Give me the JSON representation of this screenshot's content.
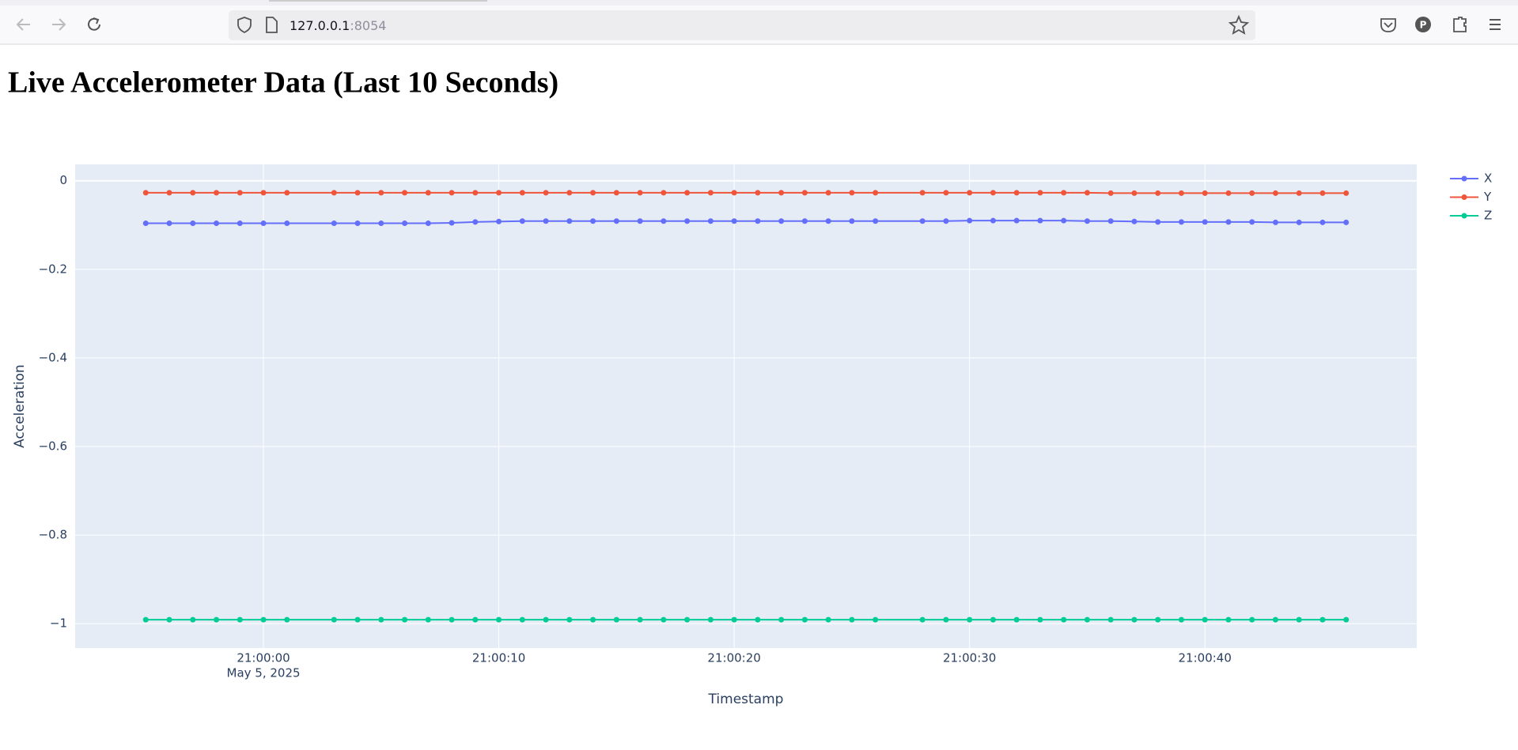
{
  "browser": {
    "url_host": "127.0.0.1",
    "url_port": ":8054",
    "profile_initial": "P"
  },
  "heading": "Live Accelerometer Data (Last 10 Seconds)",
  "chart_data": {
    "type": "line",
    "xlabel": "Timestamp",
    "ylabel": "Acceleration",
    "x": [
      "2025-05-05T20:59:55",
      "2025-05-05T20:59:56",
      "2025-05-05T20:59:57",
      "2025-05-05T20:59:58",
      "2025-05-05T20:59:59",
      "2025-05-05T21:00:00",
      "2025-05-05T21:00:01",
      "2025-05-05T21:00:03",
      "2025-05-05T21:00:04",
      "2025-05-05T21:00:05",
      "2025-05-05T21:00:06",
      "2025-05-05T21:00:07",
      "2025-05-05T21:00:08",
      "2025-05-05T21:00:09",
      "2025-05-05T21:00:10",
      "2025-05-05T21:00:11",
      "2025-05-05T21:00:12",
      "2025-05-05T21:00:13",
      "2025-05-05T21:00:14",
      "2025-05-05T21:00:15",
      "2025-05-05T21:00:16",
      "2025-05-05T21:00:17",
      "2025-05-05T21:00:18",
      "2025-05-05T21:00:19",
      "2025-05-05T21:00:20",
      "2025-05-05T21:00:21",
      "2025-05-05T21:00:22",
      "2025-05-05T21:00:23",
      "2025-05-05T21:00:24",
      "2025-05-05T21:00:25",
      "2025-05-05T21:00:26",
      "2025-05-05T21:00:28",
      "2025-05-05T21:00:29",
      "2025-05-05T21:00:30",
      "2025-05-05T21:00:31",
      "2025-05-05T21:00:32",
      "2025-05-05T21:00:33",
      "2025-05-05T21:00:34",
      "2025-05-05T21:00:35",
      "2025-05-05T21:00:36",
      "2025-05-05T21:00:37",
      "2025-05-05T21:00:38",
      "2025-05-05T21:00:39",
      "2025-05-05T21:00:40",
      "2025-05-05T21:00:41",
      "2025-05-05T21:00:42",
      "2025-05-05T21:00:43",
      "2025-05-05T21:00:44",
      "2025-05-05T21:00:45",
      "2025-05-05T21:00:46"
    ],
    "series": [
      {
        "name": "X",
        "color": "#636efa",
        "values": [
          -0.096,
          -0.096,
          -0.096,
          -0.096,
          -0.096,
          -0.096,
          -0.096,
          -0.096,
          -0.096,
          -0.096,
          -0.096,
          -0.096,
          -0.095,
          -0.093,
          -0.092,
          -0.091,
          -0.091,
          -0.091,
          -0.091,
          -0.091,
          -0.091,
          -0.091,
          -0.091,
          -0.091,
          -0.091,
          -0.091,
          -0.091,
          -0.091,
          -0.091,
          -0.091,
          -0.091,
          -0.091,
          -0.091,
          -0.09,
          -0.09,
          -0.09,
          -0.09,
          -0.09,
          -0.091,
          -0.091,
          -0.092,
          -0.093,
          -0.093,
          -0.093,
          -0.093,
          -0.093,
          -0.094,
          -0.094,
          -0.094,
          -0.094
        ]
      },
      {
        "name": "Y",
        "color": "#ef553b",
        "values": [
          -0.027,
          -0.027,
          -0.027,
          -0.027,
          -0.027,
          -0.027,
          -0.027,
          -0.027,
          -0.027,
          -0.027,
          -0.027,
          -0.027,
          -0.027,
          -0.027,
          -0.027,
          -0.027,
          -0.027,
          -0.027,
          -0.027,
          -0.027,
          -0.027,
          -0.027,
          -0.027,
          -0.027,
          -0.027,
          -0.027,
          -0.027,
          -0.027,
          -0.027,
          -0.027,
          -0.027,
          -0.027,
          -0.027,
          -0.027,
          -0.027,
          -0.027,
          -0.027,
          -0.027,
          -0.027,
          -0.028,
          -0.028,
          -0.028,
          -0.028,
          -0.028,
          -0.028,
          -0.028,
          -0.028,
          -0.028,
          -0.028,
          -0.028
        ]
      },
      {
        "name": "Z",
        "color": "#00cc96",
        "values": [
          -0.991,
          -0.991,
          -0.991,
          -0.991,
          -0.991,
          -0.991,
          -0.991,
          -0.991,
          -0.991,
          -0.991,
          -0.991,
          -0.991,
          -0.991,
          -0.991,
          -0.991,
          -0.991,
          -0.991,
          -0.991,
          -0.991,
          -0.991,
          -0.991,
          -0.991,
          -0.991,
          -0.991,
          -0.991,
          -0.991,
          -0.991,
          -0.991,
          -0.991,
          -0.991,
          -0.991,
          -0.991,
          -0.991,
          -0.991,
          -0.991,
          -0.991,
          -0.991,
          -0.991,
          -0.991,
          -0.991,
          -0.991,
          -0.991,
          -0.991,
          -0.991,
          -0.991,
          -0.991,
          -0.991,
          -0.991,
          -0.991,
          -0.991
        ]
      }
    ],
    "xlim": [
      "2025-05-05T20:59:52",
      "2025-05-05T21:00:49"
    ],
    "xticks": [
      {
        "value": "2025-05-05T21:00:00",
        "label": "21:00:00",
        "sublabel": "May 5, 2025"
      },
      {
        "value": "2025-05-05T21:00:10",
        "label": "21:00:10"
      },
      {
        "value": "2025-05-05T21:00:20",
        "label": "21:00:20"
      },
      {
        "value": "2025-05-05T21:00:30",
        "label": "21:00:30"
      },
      {
        "value": "2025-05-05T21:00:40",
        "label": "21:00:40"
      }
    ],
    "ylim": [
      -1.055,
      0.037
    ],
    "yticks": [
      0,
      {
        "value": -0.2,
        "label": "−0.2"
      },
      {
        "value": -0.4,
        "label": "−0.4"
      },
      {
        "value": -0.6,
        "label": "−0.6"
      },
      {
        "value": -0.8,
        "label": "−0.8"
      },
      {
        "value": -1,
        "label": "−1"
      }
    ],
    "grid": true,
    "markers": true,
    "plot_bgcolor": "#e5ecf6"
  }
}
